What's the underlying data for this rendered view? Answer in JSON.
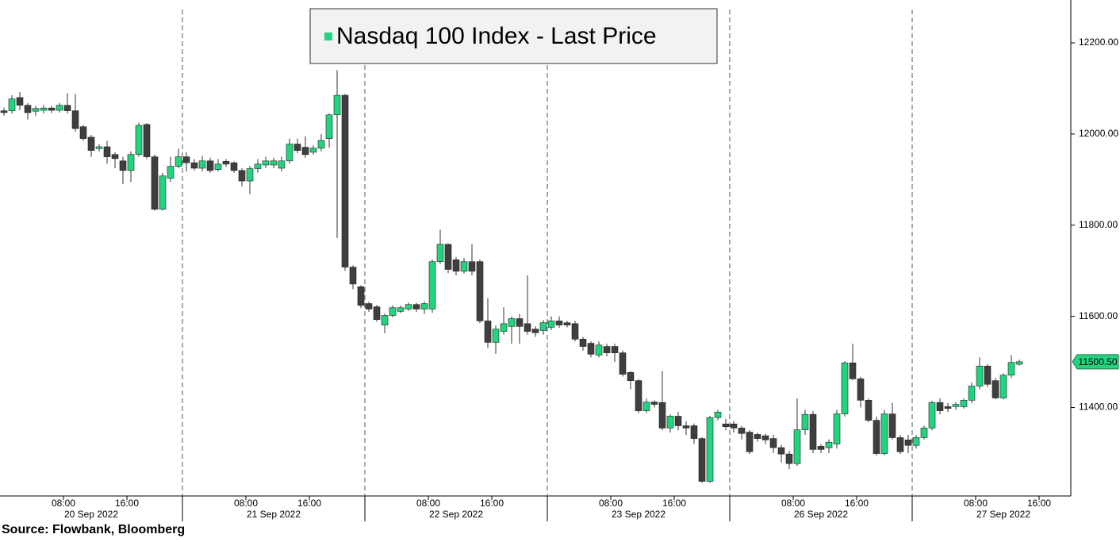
{
  "chart_data": {
    "type": "candlestick",
    "title": "Nasdaq 100 Index - Last Price",
    "source": "Source: Flowbank, Bloomberg",
    "up_color": "#22d37f",
    "down_color": "#3f3f3f",
    "open": [
      12051,
      12051,
      12080,
      12063,
      12050,
      12052,
      12057,
      12052,
      12063,
      12051,
      12016,
      11993,
      11968,
      11972,
      11955,
      11941,
      11920,
      11955,
      12021,
      11950,
      11835,
      11903,
      11929,
      11950,
      11937,
      11925,
      11941,
      11922,
      11940,
      11937,
      11920,
      11897,
      11924,
      11932,
      11932,
      11925,
      11941,
      11978,
      11971,
      11960,
      11969,
      11990,
      12042,
      12085,
      11708,
      11665,
      11628,
      11621,
      11581,
      11602,
      11611,
      11616,
      11626,
      11616,
      11616,
      11720,
      11758,
      11724,
      11699,
      11720,
      11720,
      11590,
      11543,
      11567,
      11578,
      11595,
      11584,
      11572,
      11569,
      11576,
      11590,
      11586,
      11584,
      11550,
      11541,
      11515,
      11534,
      11534,
      11520,
      11477,
      11459,
      11393,
      11412,
      11411,
      11355,
      11381,
      11360,
      11360,
      11332,
      11238,
      11378,
      11364,
      11364,
      11355,
      11346,
      11341,
      11338,
      11332,
      11312,
      11298,
      11277,
      11351,
      11385,
      11315,
      11312,
      11320,
      11386,
      11498,
      11463,
      11416,
      11372,
      11299,
      11386,
      11334,
      11329,
      11317,
      11334,
      11355,
      11411,
      11402,
      11402,
      11402,
      11416,
      11447,
      11491,
      11459,
      11421,
      11471,
      11495
    ],
    "high": [
      12058,
      12085,
      12092,
      12068,
      12062,
      12064,
      12062,
      12068,
      12090,
      12088,
      12020,
      11998,
      11978,
      11985,
      11960,
      11950,
      11962,
      12025,
      12024,
      11955,
      11915,
      11950,
      11968,
      11960,
      11945,
      11952,
      11948,
      11945,
      11945,
      11940,
      11925,
      11930,
      11945,
      11950,
      11948,
      11950,
      11990,
      11990,
      11995,
      11975,
      12000,
      12045,
      12140,
      12088,
      11712,
      11668,
      11632,
      11625,
      11606,
      11624,
      11624,
      11630,
      11630,
      11633,
      11725,
      11790,
      11760,
      11730,
      11728,
      11758,
      11725,
      11640,
      11580,
      11620,
      11600,
      11605,
      11690,
      11578,
      11592,
      11600,
      11600,
      11590,
      11590,
      11555,
      11545,
      11545,
      11540,
      11540,
      11525,
      11480,
      11462,
      11420,
      11416,
      11480,
      11385,
      11390,
      11370,
      11365,
      11335,
      11382,
      11395,
      11375,
      11370,
      11360,
      11350,
      11345,
      11342,
      11340,
      11318,
      11305,
      11420,
      11395,
      11392,
      11320,
      11330,
      11395,
      11502,
      11540,
      11468,
      11420,
      11380,
      11395,
      11410,
      11340,
      11340,
      11340,
      11360,
      11415,
      11420,
      11410,
      11412,
      11420,
      11455,
      11510,
      11495,
      11465,
      11475,
      11515,
      11505
    ],
    "low": [
      12040,
      12045,
      12052,
      12032,
      12040,
      12045,
      12046,
      12047,
      12045,
      12005,
      11985,
      11950,
      11962,
      11935,
      11925,
      11890,
      11895,
      11950,
      11945,
      11832,
      11832,
      11895,
      11925,
      11918,
      11920,
      11918,
      11915,
      11918,
      11928,
      11915,
      11885,
      11868,
      11915,
      11925,
      11925,
      11918,
      11935,
      11958,
      11948,
      11955,
      11962,
      11970,
      11772,
      11700,
      11660,
      11618,
      11610,
      11588,
      11563,
      11598,
      11607,
      11612,
      11610,
      11605,
      11608,
      11715,
      11695,
      11690,
      11694,
      11690,
      11585,
      11530,
      11518,
      11560,
      11540,
      11540,
      11560,
      11555,
      11560,
      11570,
      11575,
      11576,
      11545,
      11525,
      11510,
      11510,
      11512,
      11500,
      11468,
      11440,
      11388,
      11388,
      11400,
      11350,
      11345,
      11350,
      11340,
      11320,
      11235,
      11235,
      11372,
      11350,
      11345,
      11330,
      11298,
      11325,
      11320,
      11300,
      11280,
      11265,
      11272,
      11340,
      11300,
      11300,
      11300,
      11310,
      11380,
      11460,
      11400,
      11368,
      11295,
      11295,
      11330,
      11298,
      11300,
      11310,
      11330,
      11350,
      11385,
      11390,
      11395,
      11398,
      11410,
      11440,
      11445,
      11418,
      11418,
      11465,
      11492
    ],
    "close": [
      12047,
      12077,
      12063,
      12047,
      12056,
      12057,
      12052,
      12063,
      12051,
      12012,
      11990,
      11964,
      11972,
      11950,
      11946,
      11920,
      11955,
      12019,
      11950,
      11835,
      11908,
      11929,
      11950,
      11937,
      11925,
      11941,
      11920,
      11934,
      11934,
      11920,
      11897,
      11924,
      11934,
      11941,
      11941,
      11941,
      11978,
      11964,
      11955,
      11969,
      11986,
      12042,
      12085,
      11708,
      11671,
      11624,
      11616,
      11593,
      11602,
      11619,
      11619,
      11626,
      11616,
      11628,
      11720,
      11758,
      11703,
      11699,
      11720,
      11699,
      11590,
      11543,
      11572,
      11584,
      11595,
      11578,
      11567,
      11564,
      11586,
      11590,
      11581,
      11581,
      11550,
      11534,
      11517,
      11537,
      11520,
      11520,
      11473,
      11459,
      11393,
      11412,
      11407,
      11355,
      11381,
      11360,
      11355,
      11332,
      11238,
      11378,
      11390,
      11358,
      11355,
      11343,
      11303,
      11332,
      11329,
      11312,
      11298,
      11277,
      11351,
      11385,
      11308,
      11308,
      11324,
      11386,
      11498,
      11463,
      11416,
      11372,
      11299,
      11386,
      11334,
      11303,
      11317,
      11334,
      11355,
      11411,
      11393,
      11398,
      11407,
      11416,
      11447,
      11491,
      11451,
      11421,
      11471,
      11499,
      11500.5
    ],
    "last_price": {
      "value": 11500.5,
      "label": "11500.50"
    },
    "ylim": [
      11206,
      12294
    ],
    "yticks": [
      {
        "value": 11400,
        "label": "11400.00"
      },
      {
        "value": 11600,
        "label": "11600.00"
      },
      {
        "value": 11800,
        "label": "11800.00"
      },
      {
        "value": 12000,
        "label": "12000.00"
      },
      {
        "value": 12200,
        "label": "12200.00"
      }
    ],
    "xlim": [
      0,
      135
    ],
    "xticks": [
      {
        "value": 8,
        "label": "08:00"
      },
      {
        "value": 16,
        "label": "16:00"
      },
      {
        "value": 31,
        "label": "08:00"
      },
      {
        "value": 39,
        "label": "16:00"
      },
      {
        "value": 54,
        "label": "08:00"
      },
      {
        "value": 62,
        "label": "16:00"
      },
      {
        "value": 77,
        "label": "08:00"
      },
      {
        "value": 85,
        "label": "16:00"
      },
      {
        "value": 100,
        "label": "08:00"
      },
      {
        "value": 108,
        "label": "16:00"
      },
      {
        "value": 123,
        "label": "08:00"
      },
      {
        "value": 131,
        "label": "16:00"
      }
    ],
    "day_labels": [
      {
        "value": 0,
        "label": "20 Sep 2022"
      },
      {
        "value": 23,
        "label": "21 Sep 2022"
      },
      {
        "value": 46,
        "label": "22 Sep 2022"
      },
      {
        "value": 69,
        "label": "23 Sep 2022"
      },
      {
        "value": 92,
        "label": "26 Sep 2022"
      },
      {
        "value": 115,
        "label": "27 Sep 2022"
      }
    ]
  }
}
